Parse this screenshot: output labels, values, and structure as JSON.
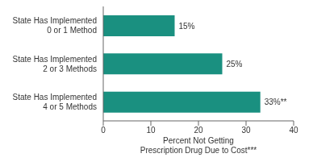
{
  "chart_data": {
    "type": "bar",
    "orientation": "horizontal",
    "categories": [
      "State Has Implemented\n4 or 5 Methods",
      "State Has Implemented\n2 or 3 Methods",
      "State Has Implemented\n0 or 1 Method"
    ],
    "values": [
      33,
      25,
      15
    ],
    "value_labels": [
      "33%**",
      "25%",
      "15%"
    ],
    "data_labels": true,
    "color": "#1a9080",
    "xlabel": "Percent Not Getting\nPrescription Drug Due to Cost***",
    "xlim": [
      0,
      40
    ],
    "xticks": [
      0,
      10,
      20,
      30,
      40
    ],
    "grid": false
  }
}
